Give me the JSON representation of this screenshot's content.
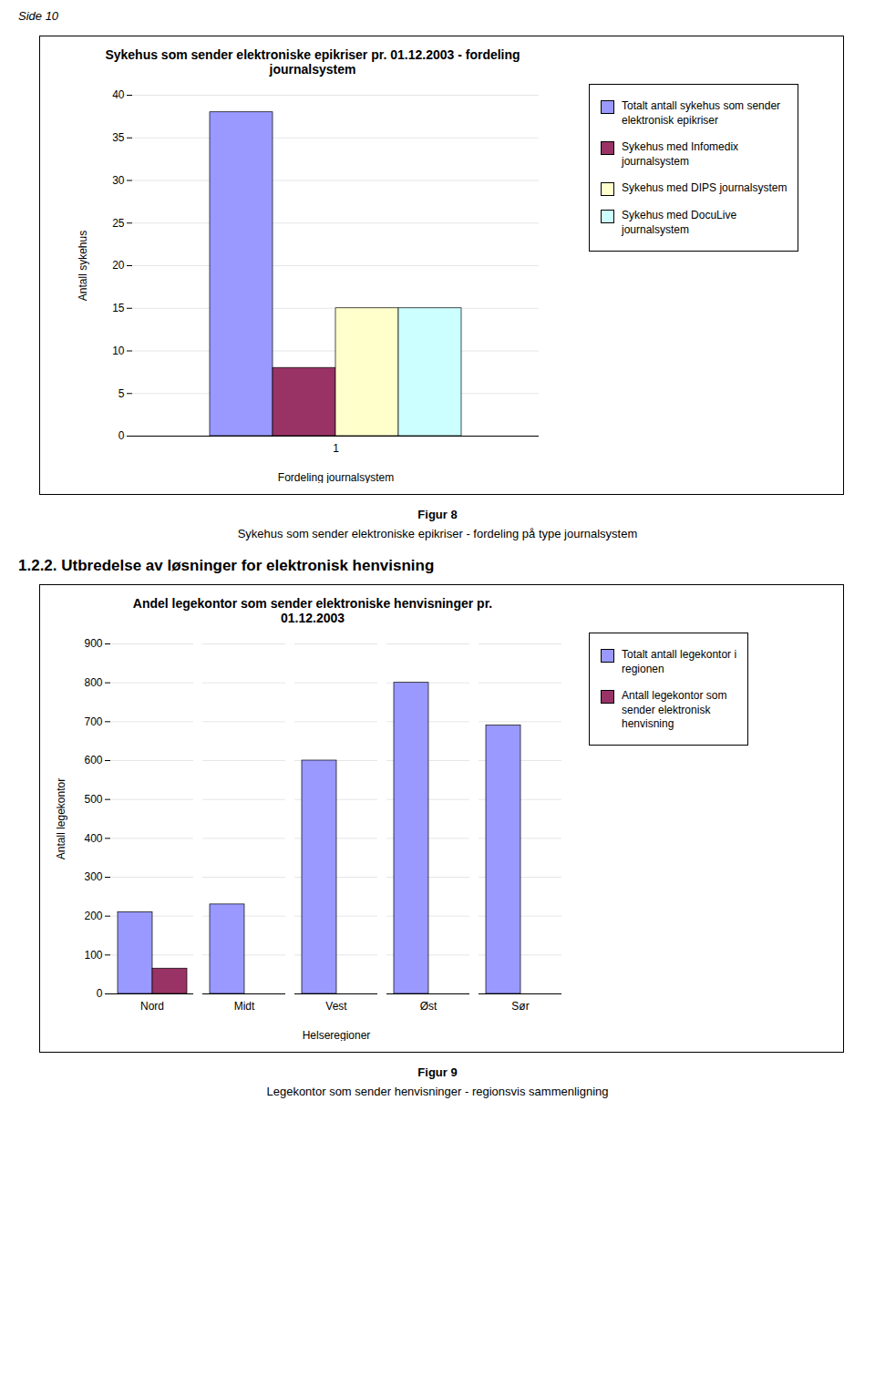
{
  "page_label": "Side 10",
  "section_heading": "1.2.2. Utbredelse av løsninger for elektronisk henvisning",
  "chart_data": [
    {
      "type": "bar",
      "title": "Sykehus som sender elektroniske epikriser pr. 01.12.2003 - fordeling\njournalsystem",
      "xlabel": "Fordeling journalsystem",
      "ylabel": "Antall sykehus",
      "categories": [
        "1"
      ],
      "series": [
        {
          "name": "Totalt antall sykehus som sender\nelektronisk epikriser",
          "color": "#9999FF",
          "values": [
            38
          ]
        },
        {
          "name": "Sykehus med Infomedix\njournalsystem",
          "color": "#993366",
          "values": [
            8
          ]
        },
        {
          "name": "Sykehus med DIPS journalsystem",
          "color": "#FFFFCC",
          "values": [
            15
          ]
        },
        {
          "name": "Sykehus med DocuLive\njournalsystem",
          "color": "#CCFFFF",
          "values": [
            15
          ]
        }
      ],
      "ylim": [
        0,
        40
      ],
      "yticks": [
        0,
        5,
        10,
        15,
        20,
        25,
        30,
        35,
        40
      ],
      "grid": true,
      "legend": "right",
      "caption": [
        "Figur 8",
        "Sykehus som sender elektroniske epikriser - fordeling på type journalsystem"
      ]
    },
    {
      "type": "bar",
      "title": "Andel legekontor som sender elektroniske henvisninger pr.\n01.12.2003",
      "xlabel": "Helseregioner",
      "ylabel": "Antall legekontor",
      "categories": [
        "Nord",
        "Midt",
        "Vest",
        "Øst",
        "Sør"
      ],
      "series": [
        {
          "name": "Totalt antall legekontor i\nregionen",
          "color": "#9999FF",
          "values": [
            210,
            230,
            600,
            800,
            690
          ]
        },
        {
          "name": "Antall legekontor som\nsender elektronisk\nhenvisning",
          "color": "#993366",
          "values": [
            65,
            0,
            0,
            0,
            0
          ]
        }
      ],
      "ylim": [
        0,
        900
      ],
      "yticks": [
        0,
        100,
        200,
        300,
        400,
        500,
        600,
        700,
        800,
        900
      ],
      "grid": true,
      "legend": "right",
      "caption": [
        "Figur 9",
        "Legekontor som sender henvisninger - regionsvis sammenligning"
      ]
    }
  ]
}
